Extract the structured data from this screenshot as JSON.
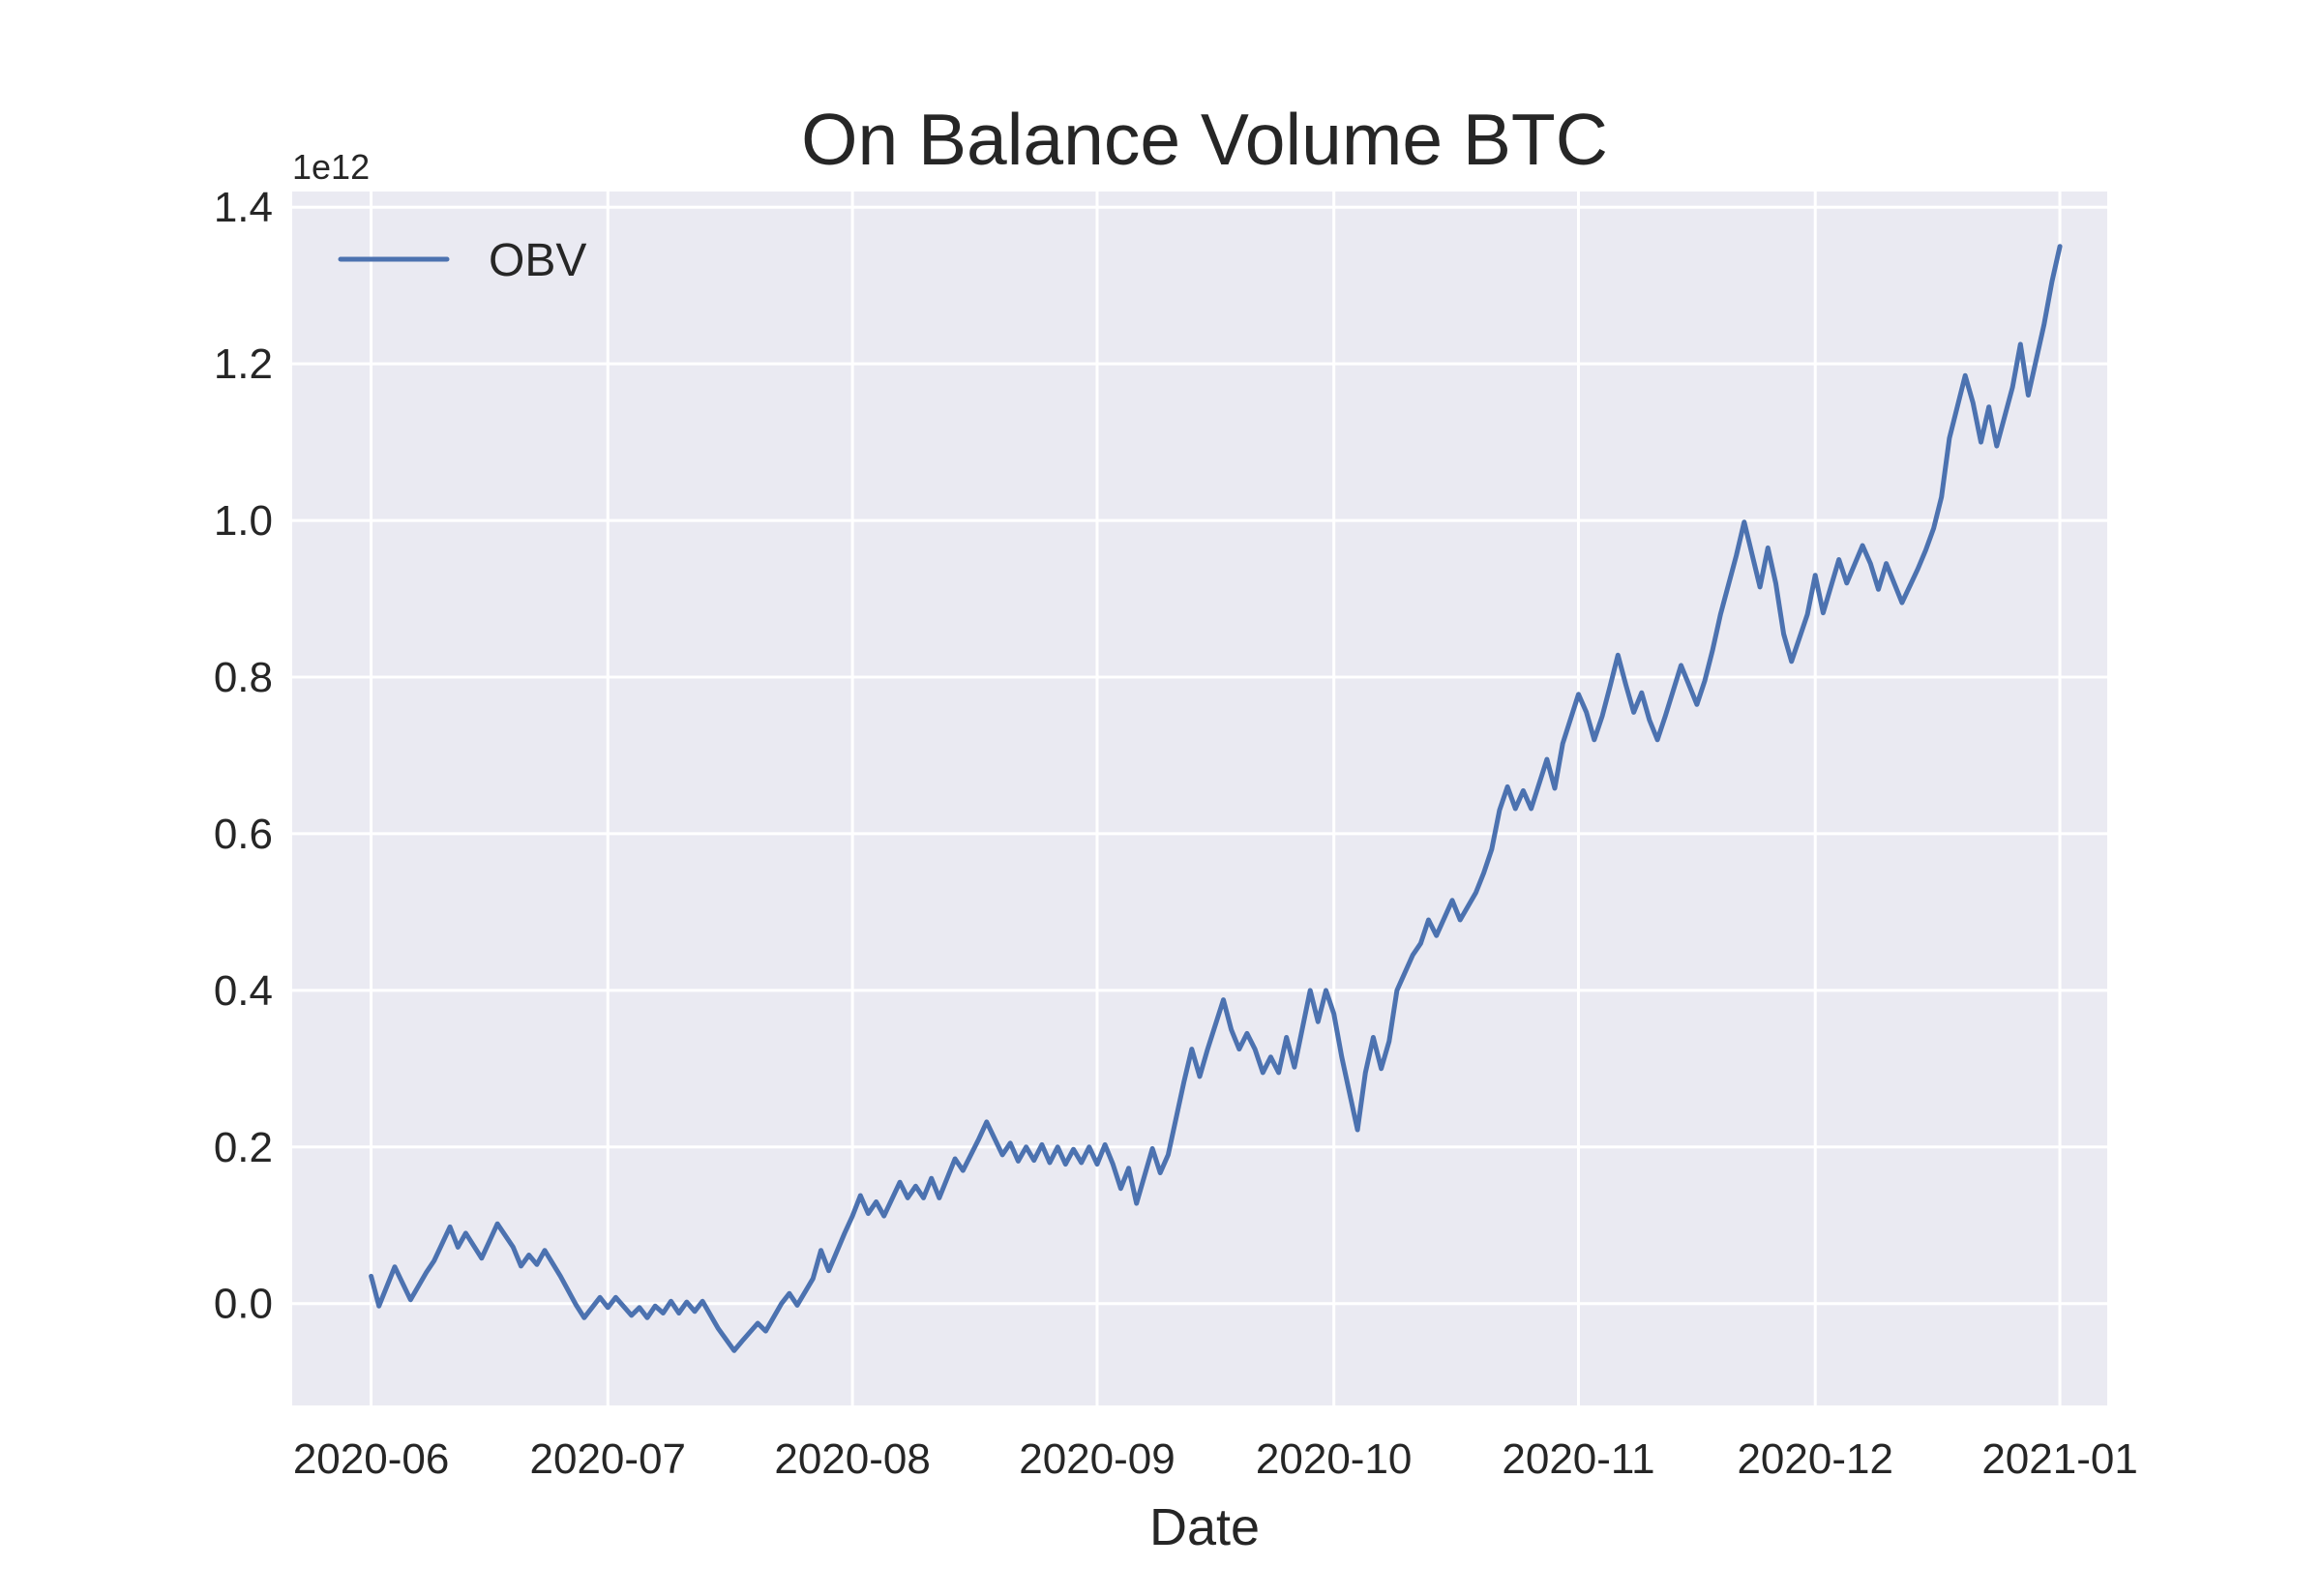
{
  "chart_data": {
    "type": "line",
    "title": "On Balance Volume BTC",
    "xlabel": "Date",
    "ylabel": "",
    "y_offset_label": "1e12",
    "x_range": [
      "2020-05-22",
      "2021-01-07"
    ],
    "ylim": [
      -0.13,
      1.42
    ],
    "grid": true,
    "legend": "top-left",
    "x_tick_labels": [
      "2020-06",
      "2020-07",
      "2020-08",
      "2020-09",
      "2020-10",
      "2020-11",
      "2020-12",
      "2021-01"
    ],
    "y_tick_values": [
      0.0,
      0.2,
      0.4,
      0.6,
      0.8,
      1.0,
      1.2,
      1.4
    ],
    "y_tick_labels": [
      "0.0",
      "0.2",
      "0.4",
      "0.6",
      "0.8",
      "1.0",
      "1.2",
      "1.4"
    ],
    "series": [
      {
        "name": "OBV",
        "color": "#4c72b0",
        "points": [
          [
            "2020-06-01",
            0.035
          ],
          [
            "2020-06-02",
            -0.003
          ],
          [
            "2020-06-04",
            0.047
          ],
          [
            "2020-06-06",
            0.005
          ],
          [
            "2020-06-08",
            0.04
          ],
          [
            "2020-06-09",
            0.055
          ],
          [
            "2020-06-11",
            0.098
          ],
          [
            "2020-06-12",
            0.072
          ],
          [
            "2020-06-13",
            0.09
          ],
          [
            "2020-06-15",
            0.058
          ],
          [
            "2020-06-17",
            0.102
          ],
          [
            "2020-06-19",
            0.072
          ],
          [
            "2020-06-20",
            0.048
          ],
          [
            "2020-06-21",
            0.062
          ],
          [
            "2020-06-22",
            0.05
          ],
          [
            "2020-06-23",
            0.068
          ],
          [
            "2020-06-25",
            0.035
          ],
          [
            "2020-06-27",
            -0.002
          ],
          [
            "2020-06-28",
            -0.018
          ],
          [
            "2020-06-30",
            0.008
          ],
          [
            "2020-07-01",
            -0.005
          ],
          [
            "2020-07-02",
            0.008
          ],
          [
            "2020-07-04",
            -0.015
          ],
          [
            "2020-07-05",
            -0.005
          ],
          [
            "2020-07-06",
            -0.018
          ],
          [
            "2020-07-07",
            -0.003
          ],
          [
            "2020-07-08",
            -0.012
          ],
          [
            "2020-07-09",
            0.003
          ],
          [
            "2020-07-10",
            -0.012
          ],
          [
            "2020-07-11",
            0.002
          ],
          [
            "2020-07-12",
            -0.01
          ],
          [
            "2020-07-13",
            0.003
          ],
          [
            "2020-07-15",
            -0.032
          ],
          [
            "2020-07-17",
            -0.06
          ],
          [
            "2020-07-18",
            -0.048
          ],
          [
            "2020-07-20",
            -0.025
          ],
          [
            "2020-07-21",
            -0.035
          ],
          [
            "2020-07-23",
            0.0
          ],
          [
            "2020-07-24",
            0.013
          ],
          [
            "2020-07-25",
            -0.002
          ],
          [
            "2020-07-27",
            0.032
          ],
          [
            "2020-07-28",
            0.068
          ],
          [
            "2020-07-29",
            0.042
          ],
          [
            "2020-07-31",
            0.09
          ],
          [
            "2020-08-01",
            0.112
          ],
          [
            "2020-08-02",
            0.138
          ],
          [
            "2020-08-03",
            0.115
          ],
          [
            "2020-08-04",
            0.13
          ],
          [
            "2020-08-05",
            0.112
          ],
          [
            "2020-08-07",
            0.155
          ],
          [
            "2020-08-08",
            0.135
          ],
          [
            "2020-08-09",
            0.15
          ],
          [
            "2020-08-10",
            0.135
          ],
          [
            "2020-08-11",
            0.16
          ],
          [
            "2020-08-12",
            0.135
          ],
          [
            "2020-08-14",
            0.185
          ],
          [
            "2020-08-15",
            0.17
          ],
          [
            "2020-08-17",
            0.21
          ],
          [
            "2020-08-18",
            0.232
          ],
          [
            "2020-08-20",
            0.19
          ],
          [
            "2020-08-21",
            0.205
          ],
          [
            "2020-08-22",
            0.182
          ],
          [
            "2020-08-23",
            0.2
          ],
          [
            "2020-08-24",
            0.183
          ],
          [
            "2020-08-25",
            0.203
          ],
          [
            "2020-08-26",
            0.18
          ],
          [
            "2020-08-27",
            0.2
          ],
          [
            "2020-08-28",
            0.178
          ],
          [
            "2020-08-29",
            0.197
          ],
          [
            "2020-08-30",
            0.18
          ],
          [
            "2020-08-31",
            0.2
          ],
          [
            "2020-09-01",
            0.178
          ],
          [
            "2020-09-02",
            0.203
          ],
          [
            "2020-09-03",
            0.178
          ],
          [
            "2020-09-04",
            0.147
          ],
          [
            "2020-09-05",
            0.173
          ],
          [
            "2020-09-06",
            0.128
          ],
          [
            "2020-09-08",
            0.198
          ],
          [
            "2020-09-09",
            0.167
          ],
          [
            "2020-09-10",
            0.19
          ],
          [
            "2020-09-12",
            0.283
          ],
          [
            "2020-09-13",
            0.325
          ],
          [
            "2020-09-14",
            0.29
          ],
          [
            "2020-09-15",
            0.325
          ],
          [
            "2020-09-17",
            0.388
          ],
          [
            "2020-09-18",
            0.35
          ],
          [
            "2020-09-19",
            0.325
          ],
          [
            "2020-09-20",
            0.345
          ],
          [
            "2020-09-21",
            0.325
          ],
          [
            "2020-09-22",
            0.295
          ],
          [
            "2020-09-23",
            0.315
          ],
          [
            "2020-09-24",
            0.295
          ],
          [
            "2020-09-25",
            0.34
          ],
          [
            "2020-09-26",
            0.302
          ],
          [
            "2020-09-28",
            0.4
          ],
          [
            "2020-09-29",
            0.36
          ],
          [
            "2020-09-30",
            0.4
          ],
          [
            "2020-10-01",
            0.37
          ],
          [
            "2020-10-02",
            0.315
          ],
          [
            "2020-10-04",
            0.222
          ],
          [
            "2020-10-05",
            0.295
          ],
          [
            "2020-10-06",
            0.34
          ],
          [
            "2020-10-07",
            0.3
          ],
          [
            "2020-10-08",
            0.335
          ],
          [
            "2020-10-09",
            0.4
          ],
          [
            "2020-10-11",
            0.445
          ],
          [
            "2020-10-12",
            0.46
          ],
          [
            "2020-10-13",
            0.49
          ],
          [
            "2020-10-14",
            0.47
          ],
          [
            "2020-10-16",
            0.515
          ],
          [
            "2020-10-17",
            0.49
          ],
          [
            "2020-10-19",
            0.525
          ],
          [
            "2020-10-20",
            0.55
          ],
          [
            "2020-10-21",
            0.58
          ],
          [
            "2020-10-22",
            0.63
          ],
          [
            "2020-10-23",
            0.66
          ],
          [
            "2020-10-24",
            0.632
          ],
          [
            "2020-10-25",
            0.655
          ],
          [
            "2020-10-26",
            0.632
          ],
          [
            "2020-10-28",
            0.695
          ],
          [
            "2020-10-29",
            0.658
          ],
          [
            "2020-10-30",
            0.715
          ],
          [
            "2020-11-01",
            0.778
          ],
          [
            "2020-11-02",
            0.755
          ],
          [
            "2020-11-03",
            0.72
          ],
          [
            "2020-11-04",
            0.75
          ],
          [
            "2020-11-05",
            0.788
          ],
          [
            "2020-11-06",
            0.828
          ],
          [
            "2020-11-07",
            0.79
          ],
          [
            "2020-11-08",
            0.755
          ],
          [
            "2020-11-09",
            0.78
          ],
          [
            "2020-11-10",
            0.745
          ],
          [
            "2020-11-11",
            0.72
          ],
          [
            "2020-11-12",
            0.75
          ],
          [
            "2020-11-14",
            0.815
          ],
          [
            "2020-11-15",
            0.79
          ],
          [
            "2020-11-16",
            0.765
          ],
          [
            "2020-11-17",
            0.795
          ],
          [
            "2020-11-18",
            0.835
          ],
          [
            "2020-11-19",
            0.88
          ],
          [
            "2020-11-21",
            0.955
          ],
          [
            "2020-11-22",
            0.998
          ],
          [
            "2020-11-24",
            0.915
          ],
          [
            "2020-11-25",
            0.965
          ],
          [
            "2020-11-26",
            0.92
          ],
          [
            "2020-11-27",
            0.855
          ],
          [
            "2020-11-28",
            0.82
          ],
          [
            "2020-11-30",
            0.88
          ],
          [
            "2020-12-01",
            0.93
          ],
          [
            "2020-12-02",
            0.882
          ],
          [
            "2020-12-04",
            0.95
          ],
          [
            "2020-12-05",
            0.92
          ],
          [
            "2020-12-07",
            0.968
          ],
          [
            "2020-12-08",
            0.945
          ],
          [
            "2020-12-09",
            0.912
          ],
          [
            "2020-12-10",
            0.945
          ],
          [
            "2020-12-12",
            0.895
          ],
          [
            "2020-12-14",
            0.938
          ],
          [
            "2020-12-15",
            0.962
          ],
          [
            "2020-12-16",
            0.99
          ],
          [
            "2020-12-17",
            1.03
          ],
          [
            "2020-12-18",
            1.105
          ],
          [
            "2020-12-20",
            1.185
          ],
          [
            "2020-12-21",
            1.15
          ],
          [
            "2020-12-22",
            1.1
          ],
          [
            "2020-12-23",
            1.145
          ],
          [
            "2020-12-24",
            1.095
          ],
          [
            "2020-12-26",
            1.17
          ],
          [
            "2020-12-27",
            1.225
          ],
          [
            "2020-12-28",
            1.16
          ],
          [
            "2020-12-30",
            1.25
          ],
          [
            "2020-12-31",
            1.305
          ],
          [
            "2021-01-01",
            1.35
          ]
        ]
      }
    ]
  }
}
